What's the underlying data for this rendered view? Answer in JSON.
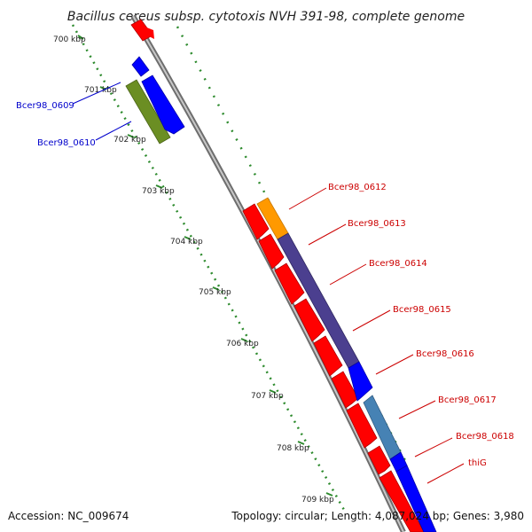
{
  "title": "Bacillus cereus subsp. cytotoxis NVH 391-98, complete genome",
  "accession": "Accession: NC_009674",
  "summary": "Topology: circular; Length: 4,087,024 bp; Genes: 3,980",
  "colors": {
    "backbone": "#8c8c8c",
    "tick": "#2e8b2e",
    "forward_cds": "#ff0000",
    "reverse_cds": "#0000ff",
    "label_forward": "#cc0000",
    "label_reverse": "#0000cc",
    "olive": "#6b8e23",
    "orange": "#ff9900",
    "slate": "#4b3f8f",
    "steel": "#4682b4"
  },
  "kbp_labels": [
    "700 kbp",
    "701 kbp",
    "702 kbp",
    "703 kbp",
    "704 kbp",
    "705 kbp",
    "706 kbp",
    "707 kbp",
    "708 kbp",
    "709 kbp"
  ],
  "genes": {
    "bcer98_0609": "Bcer98_0609",
    "bcer98_0610": "Bcer98_0610",
    "bcer98_0612": "Bcer98_0612",
    "bcer98_0613": "Bcer98_0613",
    "bcer98_0614": "Bcer98_0614",
    "bcer98_0615": "Bcer98_0615",
    "bcer98_0616": "Bcer98_0616",
    "bcer98_0617": "Bcer98_0617",
    "bcer98_0618": "Bcer98_0618",
    "thig": "thiG"
  }
}
